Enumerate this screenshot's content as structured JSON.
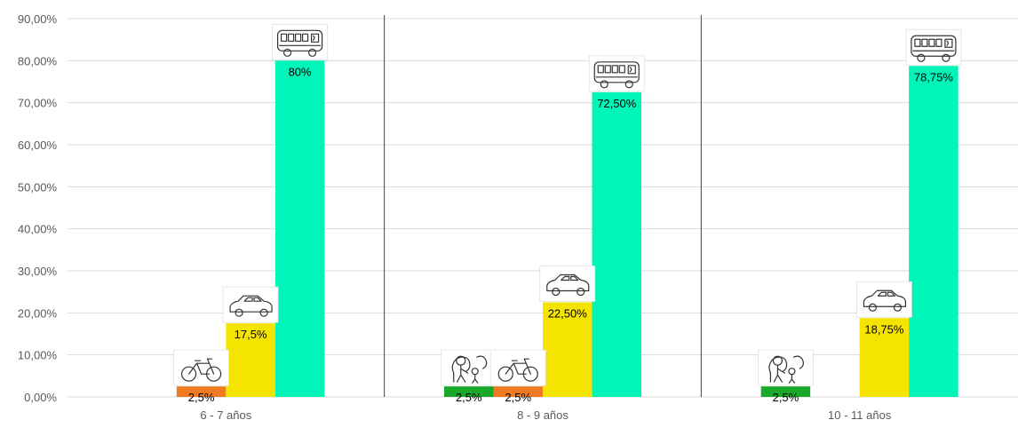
{
  "chart_data": {
    "type": "bar",
    "categories": [
      "6 - 7 años",
      "8 - 9 años",
      "10 - 11 años"
    ],
    "ylim": [
      0,
      90
    ],
    "y_ticks": [
      "0,00%",
      "10,00%",
      "20,00%",
      "30,00%",
      "40,00%",
      "50,00%",
      "60,00%",
      "70,00%",
      "80,00%",
      "90,00%"
    ],
    "y_tick_values": [
      0,
      10,
      20,
      30,
      40,
      50,
      60,
      70,
      80,
      90
    ],
    "grid": true,
    "legend": "none",
    "series": [
      {
        "icon": "walking-icon",
        "color": "#1aa82a",
        "values": [
          null,
          2.5,
          2.5
        ],
        "labels": [
          "",
          "2,5%",
          "2,5%"
        ]
      },
      {
        "icon": "bicycle-icon",
        "color": "#f07a22",
        "values": [
          2.5,
          2.5,
          null
        ],
        "labels": [
          "2,5%",
          "2,5%",
          ""
        ]
      },
      {
        "icon": "car-icon",
        "color": "#f5e400",
        "values": [
          17.5,
          22.5,
          18.75
        ],
        "labels": [
          "17,5%",
          "22,50%",
          "18,75%"
        ]
      },
      {
        "icon": "bus-icon",
        "color": "#00f5b8",
        "values": [
          80,
          72.5,
          78.75
        ],
        "labels": [
          "80%",
          "72,50%",
          "78,75%"
        ]
      }
    ]
  }
}
